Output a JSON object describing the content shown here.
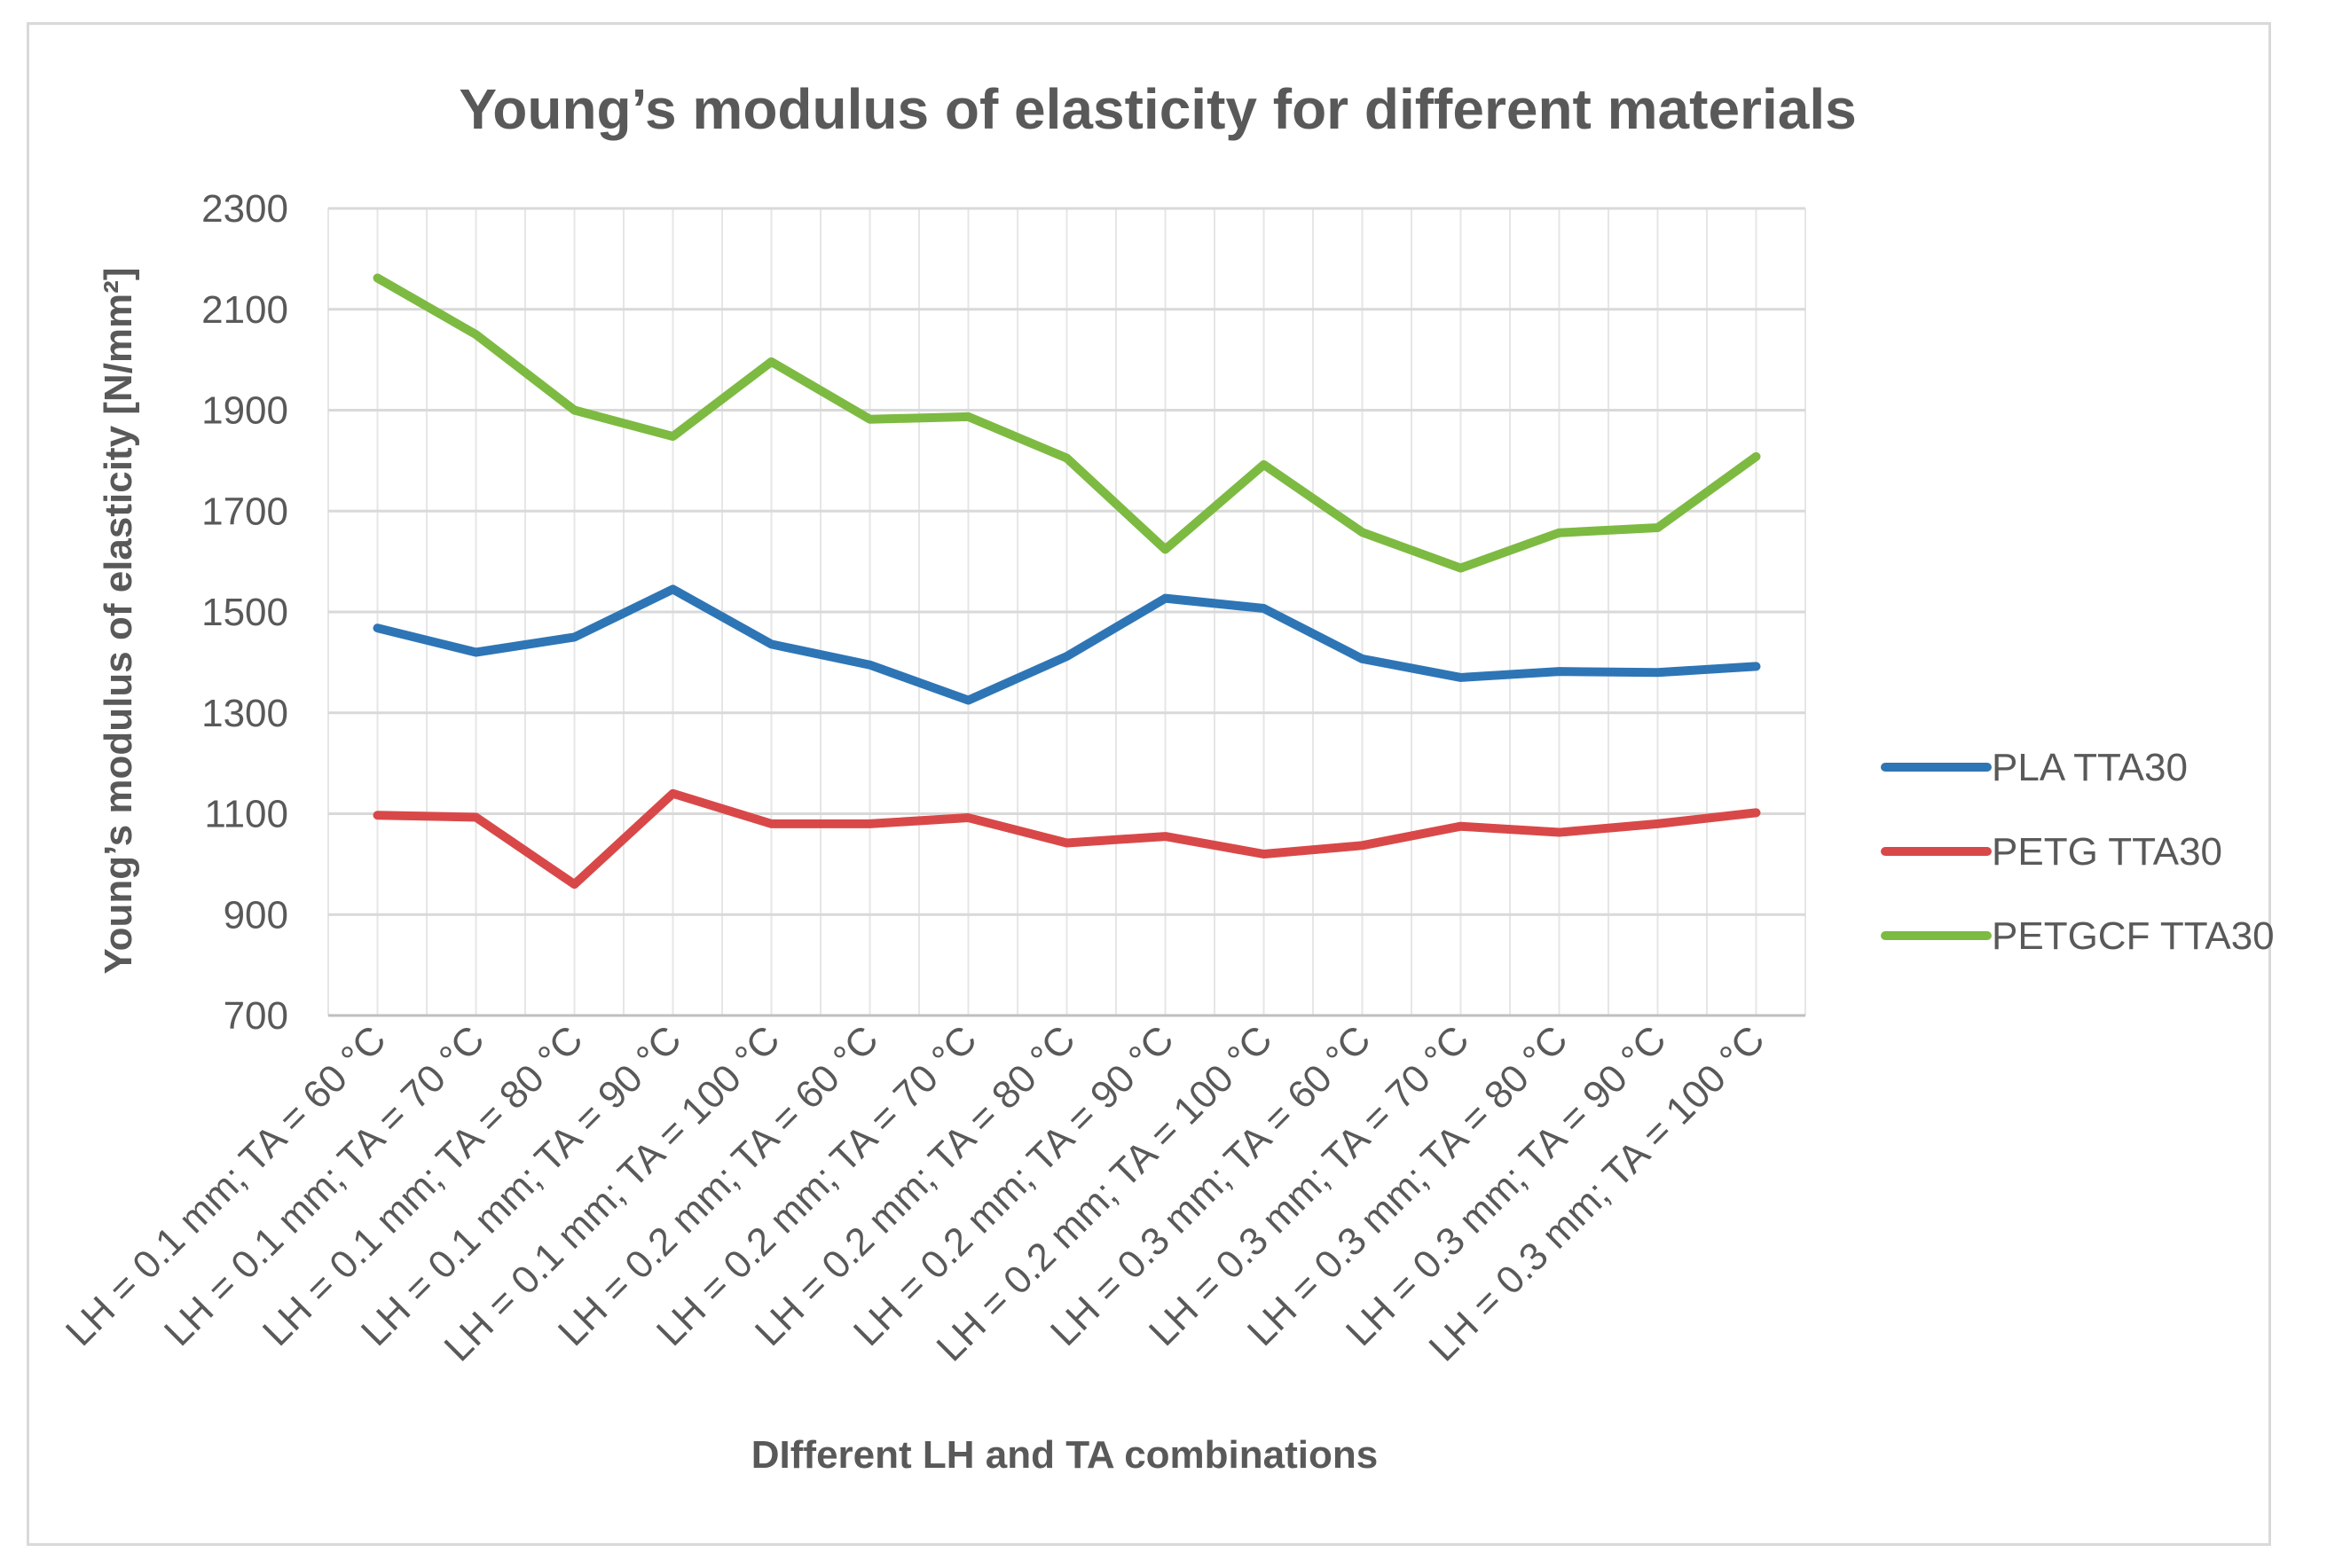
{
  "chart_data": {
    "type": "line",
    "title": "Young’s modulus of elasticity for different materials",
    "xlabel": "DIfferent LH and TA combinations",
    "ylabel": "Young’s modulus of elasticity [N/mm²]",
    "ylim": [
      700,
      2300
    ],
    "yticks": [
      700,
      900,
      1100,
      1300,
      1500,
      1700,
      1900,
      2100,
      2300
    ],
    "grid": true,
    "legend_position": "right",
    "categories": [
      "LH = 0.1 mm; TA = 60 °C",
      "LH = 0.1 mm; TA = 70 °C",
      "LH = 0.1 mm; TA = 80 °C",
      "LH = 0.1 mm; TA = 90 °C",
      "LH = 0.1 mm; TA = 100 °C",
      "LH = 0.2 mm; TA = 60 °C",
      "LH = 0.2 mm; TA = 70 °C",
      "LH = 0.2 mm; TA = 80 °C",
      "LH = 0.2 mm; TA = 90 °C",
      "LH = 0.2 mm; TA = 100 °C",
      "LH = 0.3 mm; TA = 60 °C",
      "LH = 0.3 mm; TA = 70 °C",
      "LH = 0.3 mm; TA = 80 °C",
      "LH = 0.3 mm; TA = 90 °C",
      "LH = 0.3 mm; TA = 100 °C"
    ],
    "series": [
      {
        "name": "PLA TTA30",
        "color": "#2e75b6",
        "values": [
          1468,
          1420,
          1450,
          1545,
          1436,
          1395,
          1325,
          1412,
          1527,
          1507,
          1407,
          1370,
          1382,
          1380,
          1392
        ]
      },
      {
        "name": "PETG TTA30",
        "color": "#d94848",
        "values": [
          1097,
          1093,
          960,
          1140,
          1080,
          1080,
          1092,
          1042,
          1055,
          1020,
          1037,
          1075,
          1063,
          1080,
          1102
        ]
      },
      {
        "name": "PETGCF TTA30",
        "color": "#7dba42",
        "values": [
          2162,
          2050,
          1900,
          1848,
          1996,
          1882,
          1887,
          1805,
          1624,
          1792,
          1658,
          1587,
          1657,
          1667,
          1808
        ]
      }
    ]
  }
}
